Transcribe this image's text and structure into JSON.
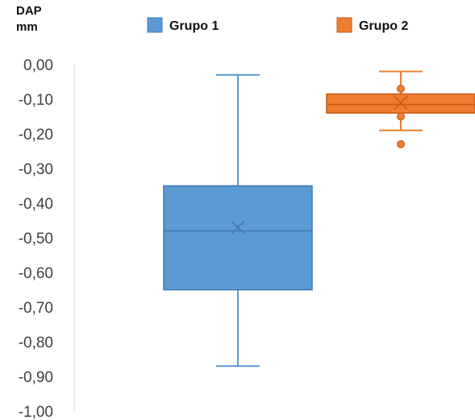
{
  "chart_data": {
    "type": "box",
    "ylabel_line1": "DAP",
    "ylabel_line2": "mm",
    "ylim": [
      -1.0,
      0.0
    ],
    "yticks": [
      "0,00",
      "-0,10",
      "-0,20",
      "-0,30",
      "-0,40",
      "-0,50",
      "-0,60",
      "-0,70",
      "-0,80",
      "-0,90",
      "-1,00"
    ],
    "ytick_values": [
      0.0,
      -0.1,
      -0.2,
      -0.3,
      -0.4,
      -0.5,
      -0.6,
      -0.7,
      -0.8,
      -0.9,
      -1.0
    ],
    "grid": false,
    "legend_placement": "top",
    "series": [
      {
        "name": "Grupo 1",
        "color": "#5b9bd5",
        "stroke": "#3f78b0",
        "min": -0.87,
        "q1": -0.65,
        "median": -0.48,
        "mean": -0.47,
        "q3": -0.35,
        "max": -0.03,
        "outliers": [],
        "inner_points": []
      },
      {
        "name": "Grupo 2",
        "color": "#ed7d31",
        "stroke": "#c65a12",
        "min": -0.19,
        "q1": -0.14,
        "median": -0.115,
        "mean": -0.11,
        "q3": -0.085,
        "max": -0.02,
        "outliers": [
          -0.23
        ],
        "inner_points": [
          -0.07,
          -0.15
        ]
      }
    ]
  }
}
